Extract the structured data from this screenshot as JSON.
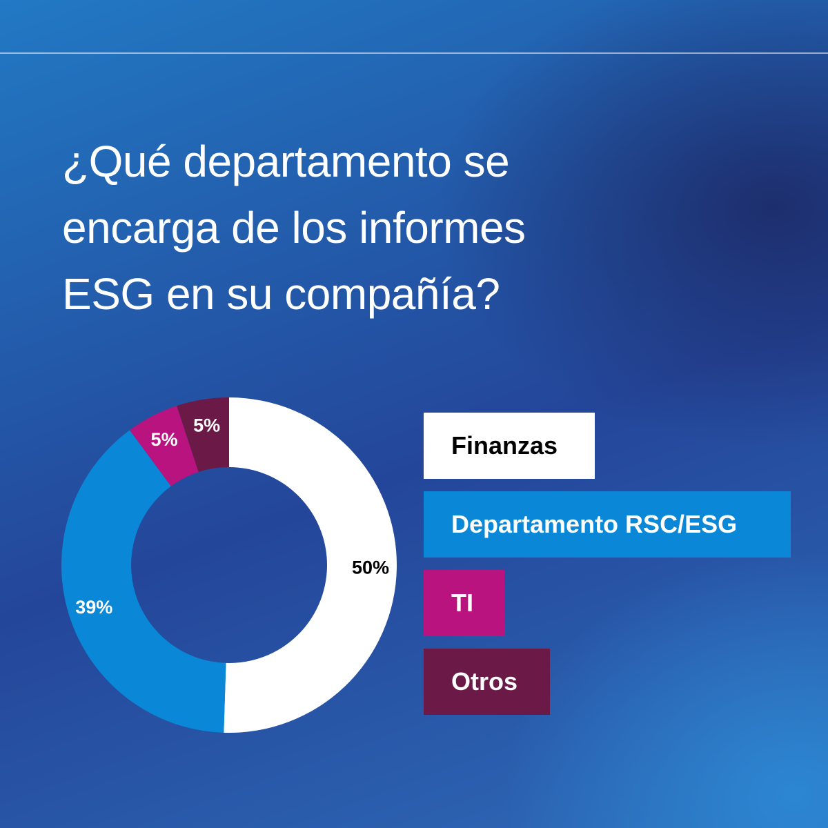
{
  "title_lines": [
    "¿Qué departamento se",
    "encarga de los informes",
    "ESG en su compañía?"
  ],
  "chart_data": {
    "type": "pie",
    "donut": true,
    "title": "¿Qué departamento se encarga de los informes ESG en su compañía?",
    "categories": [
      "Finanzas",
      "Departamento RSC/ESG",
      "TI",
      "Otros"
    ],
    "values": [
      50,
      39,
      5,
      5
    ],
    "labels": [
      "50%",
      "39%",
      "5%",
      "5%"
    ],
    "colors": [
      "#ffffff",
      "#0a87d6",
      "#b8137e",
      "#6b1a48"
    ],
    "label_colors": [
      "#000000",
      "#ffffff",
      "#ffffff",
      "#ffffff"
    ],
    "legend_placement": "right"
  }
}
